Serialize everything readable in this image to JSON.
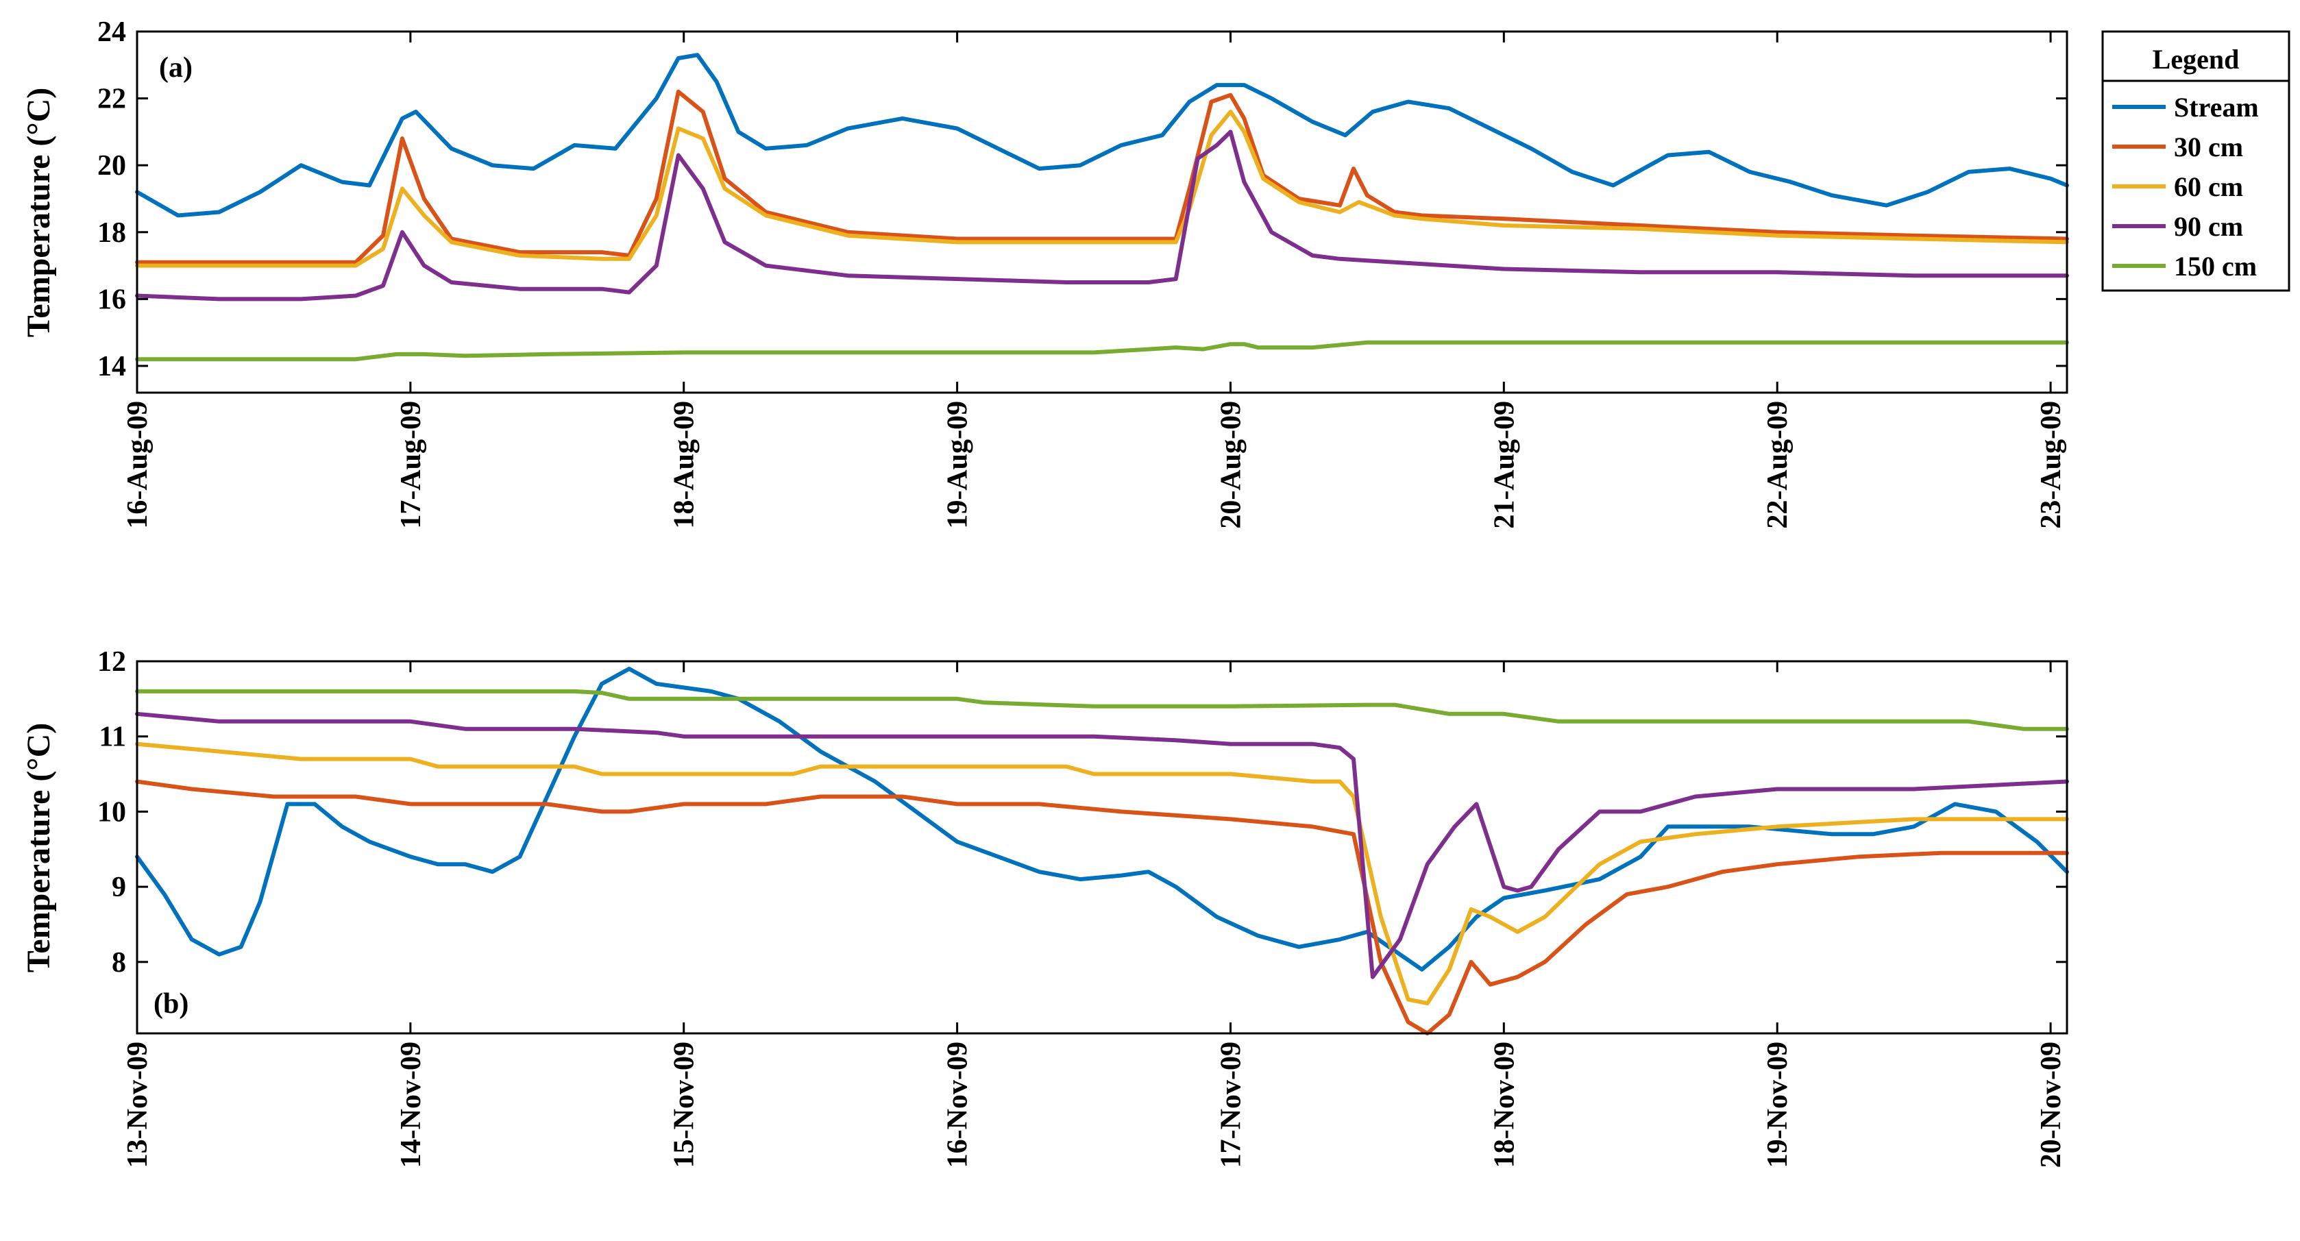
{
  "legend": {
    "title": "Legend",
    "entries": [
      "Stream",
      "30 cm",
      "60 cm",
      "90 cm",
      "150 cm"
    ],
    "colors": [
      "#0072BD",
      "#D95319",
      "#EDB120",
      "#7E2F8E",
      "#77AC30"
    ]
  },
  "chart_data": [
    {
      "type": "line",
      "panel_label": "(a)",
      "title": "",
      "xlabel": "",
      "ylabel": "Temperature (°C)",
      "x_unit": "days since 16-Aug-09 00:00",
      "xlim": [
        0,
        7.06
      ],
      "ylim": [
        13.2,
        24
      ],
      "yticks": [
        14,
        16,
        18,
        20,
        22,
        24
      ],
      "xtick_values": [
        0,
        1,
        2,
        3,
        4,
        5,
        6,
        7
      ],
      "xtick_labels": [
        "16-Aug-09",
        "17-Aug-09",
        "18-Aug-09",
        "19-Aug-09",
        "20-Aug-09",
        "21-Aug-09",
        "22-Aug-09",
        "23-Aug-09"
      ],
      "grid": false,
      "series": [
        {
          "name": "Stream",
          "x": [
            0,
            0.15,
            0.3,
            0.45,
            0.6,
            0.75,
            0.85,
            0.97,
            1.02,
            1.15,
            1.3,
            1.45,
            1.6,
            1.75,
            1.9,
            1.98,
            2.05,
            2.12,
            2.2,
            2.3,
            2.45,
            2.6,
            2.8,
            3.0,
            3.15,
            3.3,
            3.45,
            3.6,
            3.75,
            3.85,
            3.95,
            4.05,
            4.15,
            4.3,
            4.42,
            4.52,
            4.65,
            4.8,
            4.95,
            5.1,
            5.25,
            5.4,
            5.6,
            5.75,
            5.9,
            6.05,
            6.2,
            6.4,
            6.55,
            6.7,
            6.85,
            7.0,
            7.06
          ],
          "y": [
            19.2,
            18.5,
            18.6,
            19.2,
            20.0,
            19.5,
            19.4,
            21.4,
            21.6,
            20.5,
            20.0,
            19.9,
            20.6,
            20.5,
            22.0,
            23.2,
            23.3,
            22.5,
            21.0,
            20.5,
            20.6,
            21.1,
            21.4,
            21.1,
            20.5,
            19.9,
            20.0,
            20.6,
            20.9,
            21.9,
            22.4,
            22.4,
            22.0,
            21.3,
            20.9,
            21.6,
            21.9,
            21.7,
            21.1,
            20.5,
            19.8,
            19.4,
            20.3,
            20.4,
            19.8,
            19.5,
            19.1,
            18.8,
            19.2,
            19.8,
            19.9,
            19.6,
            19.4
          ]
        },
        {
          "name": "30 cm",
          "x": [
            0,
            0.3,
            0.6,
            0.8,
            0.9,
            0.97,
            1.05,
            1.15,
            1.4,
            1.7,
            1.8,
            1.9,
            1.98,
            2.07,
            2.15,
            2.3,
            2.6,
            3.0,
            3.4,
            3.8,
            3.85,
            3.93,
            4.0,
            4.05,
            4.12,
            4.25,
            4.4,
            4.45,
            4.5,
            4.6,
            4.7,
            5.0,
            5.5,
            6.0,
            6.5,
            7.06
          ],
          "y": [
            17.1,
            17.1,
            17.1,
            17.1,
            17.9,
            20.8,
            19.0,
            17.8,
            17.4,
            17.4,
            17.3,
            19.0,
            22.2,
            21.6,
            19.6,
            18.6,
            18.0,
            17.8,
            17.8,
            17.8,
            19.3,
            21.9,
            22.1,
            21.4,
            19.7,
            19.0,
            18.8,
            19.9,
            19.1,
            18.6,
            18.5,
            18.4,
            18.2,
            18.0,
            17.9,
            17.8
          ]
        },
        {
          "name": "60 cm",
          "x": [
            0,
            0.3,
            0.6,
            0.8,
            0.9,
            0.97,
            1.05,
            1.15,
            1.4,
            1.7,
            1.8,
            1.9,
            1.98,
            2.07,
            2.15,
            2.3,
            2.6,
            3.0,
            3.4,
            3.8,
            3.85,
            3.93,
            4.0,
            4.05,
            4.12,
            4.25,
            4.4,
            4.47,
            4.6,
            4.7,
            5.0,
            5.5,
            6.0,
            6.5,
            7.06
          ],
          "y": [
            17.0,
            17.0,
            17.0,
            17.0,
            17.5,
            19.3,
            18.5,
            17.7,
            17.3,
            17.2,
            17.2,
            18.5,
            21.1,
            20.8,
            19.3,
            18.5,
            17.9,
            17.7,
            17.7,
            17.7,
            18.7,
            20.9,
            21.6,
            21.0,
            19.6,
            18.9,
            18.6,
            18.9,
            18.5,
            18.4,
            18.2,
            18.1,
            17.9,
            17.8,
            17.7
          ]
        },
        {
          "name": "90 cm",
          "x": [
            0,
            0.3,
            0.6,
            0.8,
            0.9,
            0.97,
            1.05,
            1.15,
            1.4,
            1.7,
            1.8,
            1.9,
            1.98,
            2.07,
            2.15,
            2.3,
            2.6,
            3.0,
            3.4,
            3.7,
            3.8,
            3.88,
            3.95,
            4.0,
            4.05,
            4.15,
            4.3,
            4.4,
            4.6,
            4.8,
            5.0,
            5.5,
            6.0,
            6.5,
            7.06
          ],
          "y": [
            16.1,
            16.0,
            16.0,
            16.1,
            16.4,
            18.0,
            17.0,
            16.5,
            16.3,
            16.3,
            16.2,
            17.0,
            20.3,
            19.3,
            17.7,
            17.0,
            16.7,
            16.6,
            16.5,
            16.5,
            16.6,
            20.2,
            20.6,
            21.0,
            19.5,
            18.0,
            17.3,
            17.2,
            17.1,
            17.0,
            16.9,
            16.8,
            16.8,
            16.7,
            16.7
          ]
        },
        {
          "name": "150 cm",
          "x": [
            0,
            0.8,
            0.95,
            1.05,
            1.2,
            1.5,
            2.0,
            2.5,
            3.0,
            3.5,
            3.7,
            3.8,
            3.9,
            4.0,
            4.05,
            4.1,
            4.3,
            4.5,
            4.6,
            5.0,
            6.0,
            7.06
          ],
          "y": [
            14.2,
            14.2,
            14.35,
            14.35,
            14.3,
            14.35,
            14.4,
            14.4,
            14.4,
            14.4,
            14.5,
            14.55,
            14.5,
            14.65,
            14.65,
            14.55,
            14.55,
            14.7,
            14.7,
            14.7,
            14.7,
            14.7
          ]
        }
      ]
    },
    {
      "type": "line",
      "panel_label": "(b)",
      "title": "",
      "xlabel": "",
      "ylabel": "Temperature (°C)",
      "x_unit": "days since 13-Nov-09 00:00",
      "xlim": [
        0,
        7.06
      ],
      "ylim": [
        7.05,
        12
      ],
      "yticks": [
        8,
        9,
        10,
        11,
        12
      ],
      "xtick_values": [
        0,
        1,
        2,
        3,
        4,
        5,
        6,
        7
      ],
      "xtick_labels": [
        "13-Nov-09",
        "14-Nov-09",
        "15-Nov-09",
        "16-Nov-09",
        "17-Nov-09",
        "18-Nov-09",
        "19-Nov-09",
        "20-Nov-09"
      ],
      "grid": false,
      "series": [
        {
          "name": "Stream",
          "x": [
            0,
            0.1,
            0.2,
            0.3,
            0.38,
            0.45,
            0.55,
            0.65,
            0.75,
            0.85,
            1.0,
            1.1,
            1.2,
            1.3,
            1.4,
            1.5,
            1.6,
            1.7,
            1.8,
            1.9,
            2.0,
            2.1,
            2.2,
            2.35,
            2.5,
            2.7,
            2.85,
            3.0,
            3.15,
            3.3,
            3.45,
            3.6,
            3.7,
            3.8,
            3.95,
            4.1,
            4.25,
            4.4,
            4.5,
            4.6,
            4.7,
            4.8,
            4.9,
            5.0,
            5.15,
            5.35,
            5.5,
            5.6,
            5.75,
            5.9,
            6.05,
            6.2,
            6.35,
            6.5,
            6.65,
            6.8,
            6.95,
            7.06
          ],
          "y": [
            9.4,
            8.9,
            8.3,
            8.1,
            8.2,
            8.8,
            10.1,
            10.1,
            9.8,
            9.6,
            9.4,
            9.3,
            9.3,
            9.2,
            9.4,
            10.2,
            11.0,
            11.7,
            11.9,
            11.7,
            11.65,
            11.6,
            11.5,
            11.2,
            10.8,
            10.4,
            10.0,
            9.6,
            9.4,
            9.2,
            9.1,
            9.15,
            9.2,
            9.0,
            8.6,
            8.35,
            8.2,
            8.3,
            8.4,
            8.15,
            7.9,
            8.2,
            8.6,
            8.85,
            8.95,
            9.1,
            9.4,
            9.8,
            9.8,
            9.8,
            9.75,
            9.7,
            9.7,
            9.8,
            10.1,
            10.0,
            9.6,
            9.2
          ]
        },
        {
          "name": "30 cm",
          "x": [
            0,
            0.2,
            0.5,
            0.8,
            1.0,
            1.5,
            1.7,
            1.8,
            2.0,
            2.3,
            2.5,
            2.8,
            3.0,
            3.3,
            3.6,
            4.0,
            4.3,
            4.45,
            4.55,
            4.65,
            4.72,
            4.8,
            4.88,
            4.95,
            5.05,
            5.15,
            5.3,
            5.45,
            5.6,
            5.8,
            6.0,
            6.3,
            6.6,
            7.06
          ],
          "y": [
            10.4,
            10.3,
            10.2,
            10.2,
            10.1,
            10.1,
            10.0,
            10.0,
            10.1,
            10.1,
            10.2,
            10.2,
            10.1,
            10.1,
            10.0,
            9.9,
            9.8,
            9.7,
            8.0,
            7.2,
            7.05,
            7.3,
            8.0,
            7.7,
            7.8,
            8.0,
            8.5,
            8.9,
            9.0,
            9.2,
            9.3,
            9.4,
            9.45,
            9.45
          ]
        },
        {
          "name": "60 cm",
          "x": [
            0,
            0.3,
            0.6,
            1.0,
            1.1,
            1.6,
            1.7,
            2.0,
            2.4,
            2.5,
            3.0,
            3.4,
            3.5,
            4.0,
            4.3,
            4.4,
            4.45,
            4.55,
            4.65,
            4.72,
            4.8,
            4.88,
            4.95,
            5.05,
            5.15,
            5.35,
            5.5,
            5.7,
            6.0,
            6.5,
            7.06
          ],
          "y": [
            10.9,
            10.8,
            10.7,
            10.7,
            10.6,
            10.6,
            10.5,
            10.5,
            10.5,
            10.6,
            10.6,
            10.6,
            10.5,
            10.5,
            10.4,
            10.4,
            10.2,
            8.6,
            7.5,
            7.45,
            7.9,
            8.7,
            8.6,
            8.4,
            8.6,
            9.3,
            9.6,
            9.7,
            9.8,
            9.9,
            9.9
          ]
        },
        {
          "name": "90 cm",
          "x": [
            0,
            0.3,
            0.5,
            0.6,
            1.0,
            1.2,
            1.6,
            1.9,
            2.0,
            2.5,
            3.0,
            3.5,
            3.8,
            4.0,
            4.3,
            4.4,
            4.45,
            4.52,
            4.62,
            4.72,
            4.82,
            4.9,
            5.0,
            5.05,
            5.1,
            5.2,
            5.35,
            5.5,
            5.7,
            6.0,
            6.5,
            7.06
          ],
          "y": [
            11.3,
            11.2,
            11.2,
            11.2,
            11.2,
            11.1,
            11.1,
            11.05,
            11.0,
            11.0,
            11.0,
            11.0,
            10.95,
            10.9,
            10.9,
            10.85,
            10.7,
            7.8,
            8.3,
            9.3,
            9.8,
            10.1,
            9.0,
            8.95,
            9.0,
            9.5,
            10.0,
            10.0,
            10.2,
            10.3,
            10.3,
            10.4
          ]
        },
        {
          "name": "150 cm",
          "x": [
            0,
            1.0,
            1.6,
            1.7,
            1.8,
            2.0,
            2.5,
            3.0,
            3.1,
            3.5,
            4.0,
            4.5,
            4.6,
            4.8,
            5.0,
            5.2,
            5.5,
            6.0,
            6.5,
            6.7,
            6.9,
            7.06
          ],
          "y": [
            11.6,
            11.6,
            11.6,
            11.58,
            11.5,
            11.5,
            11.5,
            11.5,
            11.45,
            11.4,
            11.4,
            11.42,
            11.42,
            11.3,
            11.3,
            11.2,
            11.2,
            11.2,
            11.2,
            11.2,
            11.1,
            11.1
          ]
        }
      ]
    }
  ]
}
